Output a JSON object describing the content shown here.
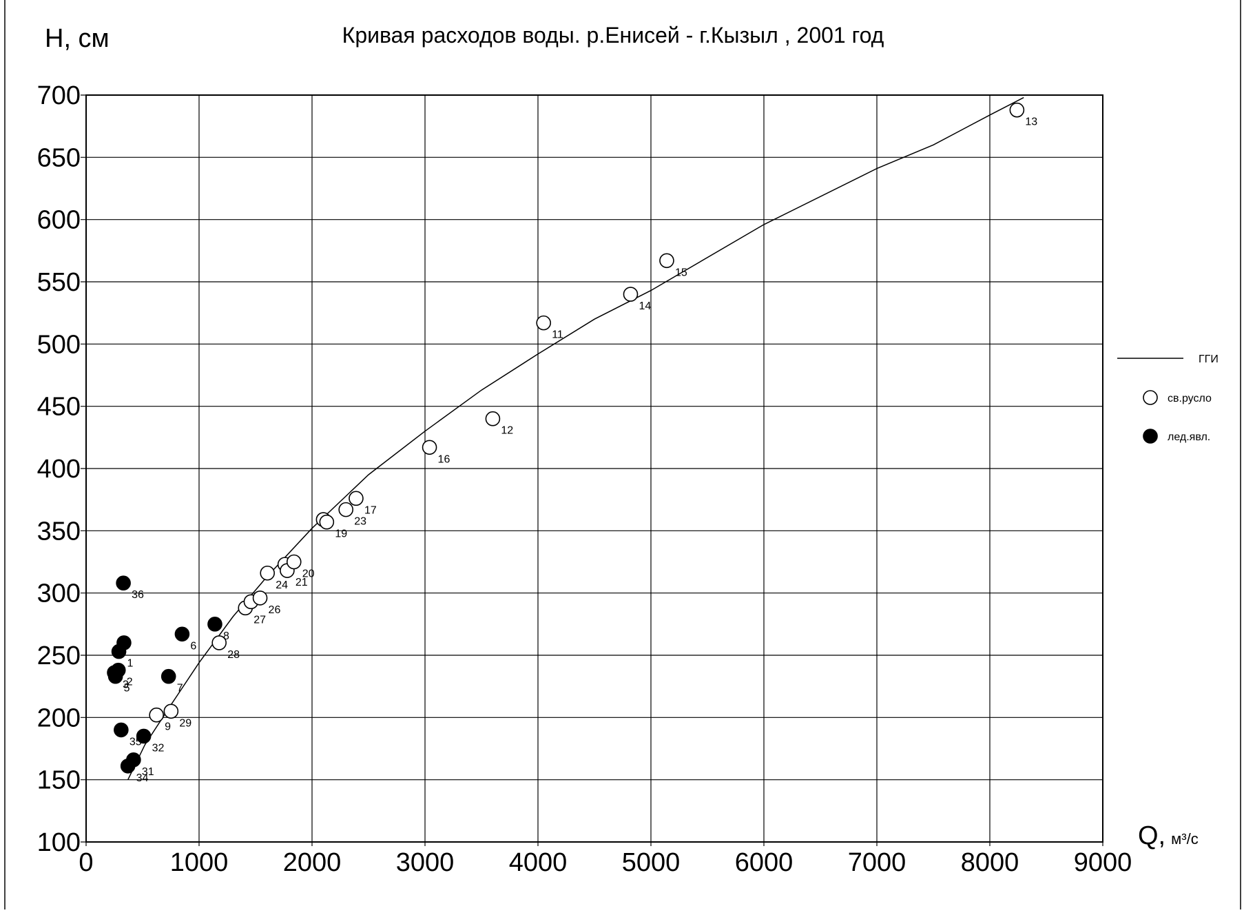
{
  "chart_data": {
    "type": "scatter",
    "title": "Кривая расходов воды. р.Енисей  - г.Кызыл , 2001 год",
    "ylabel": "Н, см",
    "xlabel": "Q, м³/с",
    "xlim": [
      0,
      9000
    ],
    "ylim": [
      100,
      700
    ],
    "x_ticks": [
      0,
      1000,
      2000,
      3000,
      4000,
      5000,
      6000,
      7000,
      8000,
      9000
    ],
    "y_ticks": [
      100,
      150,
      200,
      250,
      300,
      350,
      400,
      450,
      500,
      550,
      600,
      650,
      700
    ],
    "x_tick_labels": [
      "0",
      "1000",
      "2000",
      "3000",
      "4000",
      "5000",
      "6000",
      "7000",
      "8000",
      "9000"
    ],
    "y_tick_labels": [
      "100",
      "150",
      "200",
      "250",
      "300",
      "350",
      "400",
      "450",
      "500",
      "550",
      "600",
      "650",
      "700"
    ],
    "grid": true,
    "legend": {
      "placement": "right",
      "entries": [
        {
          "label": "ГГИ",
          "marker": "line"
        },
        {
          "label": "св.русло",
          "marker": "open-circle"
        },
        {
          "label": "лед.явл.",
          "marker": "filled-circle"
        }
      ]
    },
    "series": [
      {
        "name": "ГГИ",
        "type": "line",
        "points": [
          [
            370,
            150
          ],
          [
            520,
            178
          ],
          [
            750,
            210
          ],
          [
            1000,
            244
          ],
          [
            1300,
            281
          ],
          [
            1600,
            313
          ],
          [
            2000,
            352
          ],
          [
            2500,
            395
          ],
          [
            3000,
            430
          ],
          [
            3500,
            463
          ],
          [
            4000,
            492
          ],
          [
            4500,
            520
          ],
          [
            5000,
            543
          ],
          [
            6000,
            596
          ],
          [
            7000,
            641
          ],
          [
            7500,
            660
          ],
          [
            8000,
            684
          ],
          [
            8300,
            698
          ]
        ]
      },
      {
        "name": "св.русло",
        "type": "scatter",
        "marker": "open",
        "points": [
          {
            "x": 623,
            "y": 202,
            "label": "9"
          },
          {
            "x": 752,
            "y": 205,
            "label": "29"
          },
          {
            "x": 1178,
            "y": 260,
            "label": "28"
          },
          {
            "x": 1410,
            "y": 288,
            "label": "27"
          },
          {
            "x": 1460,
            "y": 293,
            "label": ""
          },
          {
            "x": 1540,
            "y": 296,
            "label": "26"
          },
          {
            "x": 1605,
            "y": 316,
            "label": "24"
          },
          {
            "x": 1760,
            "y": 323,
            "label": ""
          },
          {
            "x": 1780,
            "y": 318,
            "label": "21"
          },
          {
            "x": 1840,
            "y": 325,
            "label": "20"
          },
          {
            "x": 2100,
            "y": 359,
            "label": ""
          },
          {
            "x": 2130,
            "y": 357,
            "label": "19"
          },
          {
            "x": 2300,
            "y": 367,
            "label": "23"
          },
          {
            "x": 2390,
            "y": 376,
            "label": "17"
          },
          {
            "x": 3040,
            "y": 417,
            "label": "16"
          },
          {
            "x": 3600,
            "y": 440,
            "label": "12"
          },
          {
            "x": 4050,
            "y": 517,
            "label": "11"
          },
          {
            "x": 4820,
            "y": 540,
            "label": "14"
          },
          {
            "x": 5140,
            "y": 567,
            "label": "15"
          },
          {
            "x": 8240,
            "y": 688,
            "label": "13"
          }
        ]
      },
      {
        "name": "лед.явл.",
        "type": "scatter",
        "marker": "filled",
        "points": [
          {
            "x": 330,
            "y": 308,
            "label": "36"
          },
          {
            "x": 335,
            "y": 260,
            "label": ""
          },
          {
            "x": 290,
            "y": 253,
            "label": "1"
          },
          {
            "x": 285,
            "y": 238,
            "label": "2"
          },
          {
            "x": 250,
            "y": 236,
            "label": "3"
          },
          {
            "x": 260,
            "y": 233,
            "label": "5"
          },
          {
            "x": 730,
            "y": 233,
            "label": "7"
          },
          {
            "x": 850,
            "y": 267,
            "label": "6"
          },
          {
            "x": 1140,
            "y": 275,
            "label": "8"
          },
          {
            "x": 310,
            "y": 190,
            "label": "35"
          },
          {
            "x": 510,
            "y": 185,
            "label": "32"
          },
          {
            "x": 420,
            "y": 166,
            "label": "31"
          },
          {
            "x": 370,
            "y": 161,
            "label": "34"
          }
        ]
      }
    ]
  }
}
